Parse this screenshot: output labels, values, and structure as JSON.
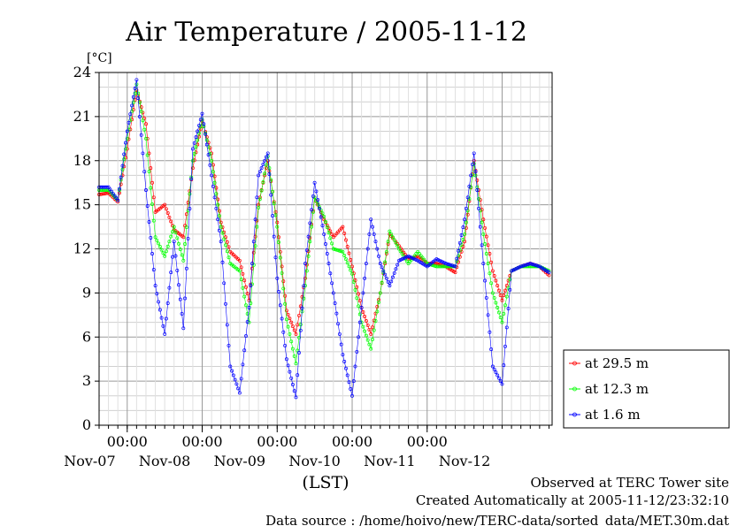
{
  "chart_data": {
    "type": "line",
    "title": "Air Temperature / 2005-11-12",
    "unit_label": "[°C]",
    "xlabel": "(LST)",
    "ylim": [
      0,
      24
    ],
    "yticks": [
      0,
      3,
      6,
      9,
      12,
      15,
      18,
      21,
      24
    ],
    "time_ticks": [
      "00:00",
      "00:00",
      "00:00",
      "00:00",
      "00:00"
    ],
    "date_labels": [
      "Nov-07",
      "Nov-08",
      "Nov-09",
      "Nov-10",
      "Nov-11",
      "Nov-12"
    ],
    "grid": true,
    "legend_position": "right, outside plot",
    "x_hours": [
      0,
      3,
      6,
      9,
      12,
      15,
      18,
      21,
      24,
      27,
      30,
      33,
      36,
      39,
      42,
      45,
      48,
      51,
      54,
      57,
      60,
      63,
      66,
      69,
      72,
      75,
      78,
      81,
      84,
      87,
      90,
      93,
      96,
      99,
      102,
      105,
      108,
      111,
      114,
      117,
      120,
      123,
      126,
      129,
      132,
      135,
      138,
      141,
      144
    ],
    "x_start": "2005-11-06 15:00",
    "series": [
      {
        "name": "at 29.5 m",
        "color": "#ff0000",
        "values": [
          15.7,
          15.8,
          15.2,
          18.8,
          22.8,
          20.5,
          14.5,
          15.0,
          13.3,
          12.8,
          17.5,
          20.7,
          18.5,
          13.8,
          11.8,
          11.2,
          8.5,
          15.0,
          18.0,
          13.8,
          7.8,
          6.2,
          10.0,
          15.5,
          14.0,
          12.8,
          13.5,
          10.8,
          8.0,
          6.2,
          9.0,
          13.0,
          12.2,
          11.3,
          11.5,
          11.0,
          11.0,
          10.8,
          10.4,
          12.5,
          18.0,
          14.0,
          10.5,
          8.5,
          10.5,
          10.8,
          11.0,
          10.8,
          10.2
        ]
      },
      {
        "name": "at 12.3 m",
        "color": "#00ff00",
        "values": [
          16.0,
          16.0,
          15.3,
          19.5,
          23.2,
          19.5,
          12.8,
          11.5,
          13.5,
          11.2,
          18.0,
          20.8,
          18.0,
          13.5,
          11.0,
          10.5,
          7.0,
          14.8,
          18.3,
          13.5,
          7.2,
          4.2,
          9.5,
          15.5,
          14.2,
          12.0,
          11.8,
          10.3,
          7.0,
          5.2,
          9.0,
          13.2,
          12.0,
          11.0,
          11.8,
          11.0,
          10.8,
          10.8,
          10.8,
          13.0,
          17.8,
          13.0,
          9.0,
          7.0,
          10.5,
          10.8,
          10.8,
          10.8,
          10.5
        ]
      },
      {
        "name": "at 1.6 m",
        "color": "#0000ff",
        "values": [
          16.2,
          16.2,
          15.3,
          20.0,
          23.5,
          16.0,
          9.5,
          6.2,
          12.5,
          6.6,
          18.8,
          21.2,
          17.0,
          12.5,
          4.0,
          2.2,
          8.0,
          17.0,
          18.5,
          10.0,
          4.5,
          1.9,
          11.0,
          16.5,
          13.0,
          9.0,
          4.8,
          2.0,
          8.0,
          14.0,
          11.0,
          9.5,
          11.2,
          11.5,
          11.2,
          10.8,
          11.3,
          11.0,
          10.8,
          14.0,
          18.5,
          11.0,
          4.0,
          2.8,
          10.5,
          10.8,
          11.0,
          10.8,
          10.4
        ]
      }
    ]
  },
  "footer": {
    "line1": "Observed at TERC Tower site",
    "line2": "Created Automatically at 2005-11-12/23:32:10",
    "line3": "Data source : /home/hoivo/new/TERC-data/sorted_data/MET.30m.dat"
  }
}
